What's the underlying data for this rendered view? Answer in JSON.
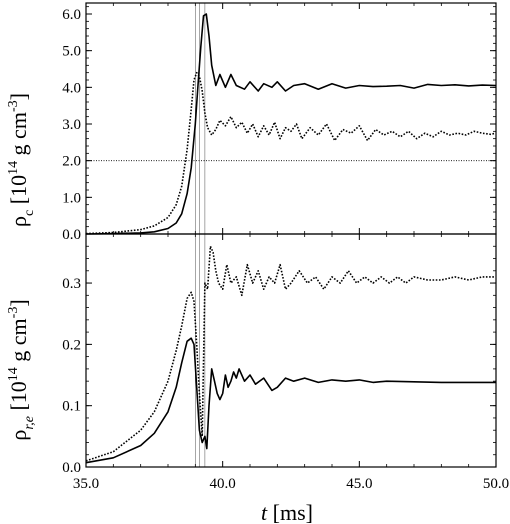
{
  "chart_data": [
    {
      "type": "line",
      "panel": "top",
      "ylabel_main": "ρ",
      "ylabel_sub": "c",
      "ylabel_rest": "[10",
      "ylabel_exp": "14",
      "ylabel_unit": "g cm",
      "ylabel_unit_exp": "-3",
      "ylim": [
        0,
        6.3
      ],
      "yticks": [
        0,
        1,
        2,
        3,
        4,
        5,
        6
      ],
      "ytick_labels": [
        "0.0",
        "1.0",
        "2.0",
        "3.0",
        "4.0",
        "5.0",
        "6.0"
      ],
      "hline": 2.0,
      "series": [
        {
          "style": "solid",
          "x": [
            35.0,
            36.0,
            37.0,
            37.5,
            38.0,
            38.3,
            38.5,
            38.7,
            38.85,
            39.0,
            39.1,
            39.2,
            39.3,
            39.4,
            39.5,
            39.6,
            39.75,
            39.9,
            40.1,
            40.3,
            40.5,
            40.8,
            41.0,
            41.3,
            41.5,
            41.8,
            42.0,
            42.3,
            42.6,
            43.0,
            43.5,
            44.0,
            44.5,
            45.0,
            45.5,
            46.0,
            46.5,
            47.0,
            47.5,
            48.0,
            48.5,
            49.0,
            49.5,
            50.0
          ],
          "y": [
            0.0,
            0.01,
            0.03,
            0.06,
            0.15,
            0.3,
            0.55,
            1.1,
            1.8,
            3.0,
            4.1,
            5.1,
            5.95,
            6.0,
            5.4,
            4.6,
            4.05,
            4.35,
            4.0,
            4.35,
            4.05,
            3.95,
            4.15,
            3.9,
            4.1,
            4.0,
            4.15,
            3.9,
            4.05,
            4.1,
            3.95,
            4.1,
            3.98,
            4.05,
            4.02,
            4.03,
            4.05,
            3.98,
            4.08,
            4.05,
            4.07,
            4.04,
            4.06,
            4.05
          ]
        },
        {
          "style": "dotted",
          "x": [
            35.0,
            36.0,
            37.0,
            37.5,
            38.0,
            38.3,
            38.5,
            38.7,
            38.85,
            38.95,
            39.05,
            39.15,
            39.25,
            39.35,
            39.45,
            39.6,
            39.75,
            39.9,
            40.1,
            40.3,
            40.5,
            40.7,
            40.9,
            41.1,
            41.3,
            41.5,
            41.7,
            41.9,
            42.1,
            42.3,
            42.5,
            42.7,
            42.9,
            43.2,
            43.5,
            43.8,
            44.1,
            44.4,
            44.7,
            45.0,
            45.3,
            45.6,
            45.9,
            46.2,
            46.5,
            46.8,
            47.1,
            47.4,
            47.7,
            48.0,
            48.3,
            48.6,
            48.9,
            49.2,
            49.5,
            49.8,
            50.0
          ],
          "y": [
            0.01,
            0.04,
            0.12,
            0.22,
            0.45,
            0.8,
            1.3,
            2.3,
            3.4,
            4.2,
            4.4,
            4.3,
            3.9,
            3.3,
            2.9,
            2.7,
            2.85,
            3.1,
            2.95,
            3.2,
            2.9,
            3.05,
            2.75,
            3.0,
            2.65,
            2.95,
            2.7,
            3.05,
            2.6,
            2.9,
            2.8,
            3.0,
            2.6,
            2.9,
            2.7,
            3.0,
            2.55,
            2.85,
            2.75,
            2.95,
            2.55,
            2.85,
            2.7,
            2.8,
            2.65,
            2.8,
            2.6,
            2.75,
            2.65,
            2.8,
            2.7,
            2.75,
            2.7,
            2.8,
            2.75,
            2.72,
            2.75
          ]
        }
      ]
    },
    {
      "type": "line",
      "panel": "bottom",
      "ylabel_main": "ρ",
      "ylabel_sub": "r,e",
      "ylabel_rest": "[10",
      "ylabel_exp": "14",
      "ylabel_unit": "g cm",
      "ylabel_unit_exp": "-3",
      "ylim": [
        0,
        0.38
      ],
      "yticks": [
        0,
        0.1,
        0.2,
        0.3
      ],
      "ytick_labels": [
        "0.0",
        "0.1",
        "0.2",
        "0.3"
      ],
      "xlim": [
        35,
        50
      ],
      "xticks": [
        35,
        40,
        45,
        50
      ],
      "xtick_labels": [
        "35.0",
        "40.0",
        "45.0",
        "50.0"
      ],
      "xlabel_italic": "t",
      "xlabel_rest": "[ms]",
      "series": [
        {
          "style": "solid",
          "x": [
            35.0,
            36.0,
            37.0,
            37.5,
            38.0,
            38.3,
            38.5,
            38.7,
            38.85,
            38.95,
            39.05,
            39.15,
            39.25,
            39.35,
            39.42,
            39.5,
            39.6,
            39.7,
            39.8,
            39.9,
            40.0,
            40.1,
            40.2,
            40.3,
            40.4,
            40.5,
            40.6,
            40.8,
            41.0,
            41.2,
            41.5,
            41.8,
            42.0,
            42.3,
            42.6,
            43.0,
            43.5,
            44.0,
            44.5,
            45.0,
            45.5,
            46.0,
            47.0,
            48.0,
            49.0,
            50.0
          ],
          "y": [
            0.007,
            0.015,
            0.035,
            0.055,
            0.09,
            0.13,
            0.17,
            0.205,
            0.21,
            0.2,
            0.13,
            0.06,
            0.04,
            0.05,
            0.03,
            0.1,
            0.16,
            0.14,
            0.12,
            0.11,
            0.12,
            0.15,
            0.13,
            0.14,
            0.155,
            0.145,
            0.16,
            0.14,
            0.15,
            0.135,
            0.145,
            0.125,
            0.13,
            0.145,
            0.14,
            0.145,
            0.138,
            0.142,
            0.14,
            0.142,
            0.138,
            0.14,
            0.139,
            0.138,
            0.138,
            0.138
          ]
        },
        {
          "style": "dotted",
          "x": [
            35.0,
            36.0,
            37.0,
            37.5,
            38.0,
            38.3,
            38.5,
            38.7,
            38.85,
            38.95,
            39.05,
            39.15,
            39.25,
            39.35,
            39.45,
            39.55,
            39.65,
            39.75,
            39.85,
            40.0,
            40.15,
            40.3,
            40.5,
            40.7,
            40.9,
            41.1,
            41.3,
            41.5,
            41.7,
            41.9,
            42.1,
            42.3,
            42.5,
            42.8,
            43.1,
            43.4,
            43.7,
            44.0,
            44.3,
            44.6,
            44.9,
            45.2,
            45.5,
            45.8,
            46.1,
            46.4,
            46.7,
            47.0,
            47.5,
            48.0,
            48.5,
            49.0,
            49.5,
            50.0
          ],
          "y": [
            0.01,
            0.025,
            0.06,
            0.09,
            0.14,
            0.19,
            0.23,
            0.275,
            0.285,
            0.27,
            0.2,
            0.12,
            0.05,
            0.3,
            0.29,
            0.36,
            0.35,
            0.32,
            0.3,
            0.29,
            0.33,
            0.3,
            0.31,
            0.28,
            0.33,
            0.3,
            0.32,
            0.29,
            0.31,
            0.3,
            0.33,
            0.29,
            0.3,
            0.32,
            0.3,
            0.31,
            0.29,
            0.31,
            0.3,
            0.32,
            0.3,
            0.31,
            0.3,
            0.31,
            0.3,
            0.31,
            0.3,
            0.31,
            0.305,
            0.305,
            0.31,
            0.305,
            0.31,
            0.31
          ]
        }
      ]
    }
  ],
  "vlines_ms": [
    39.0,
    39.15,
    39.35
  ]
}
